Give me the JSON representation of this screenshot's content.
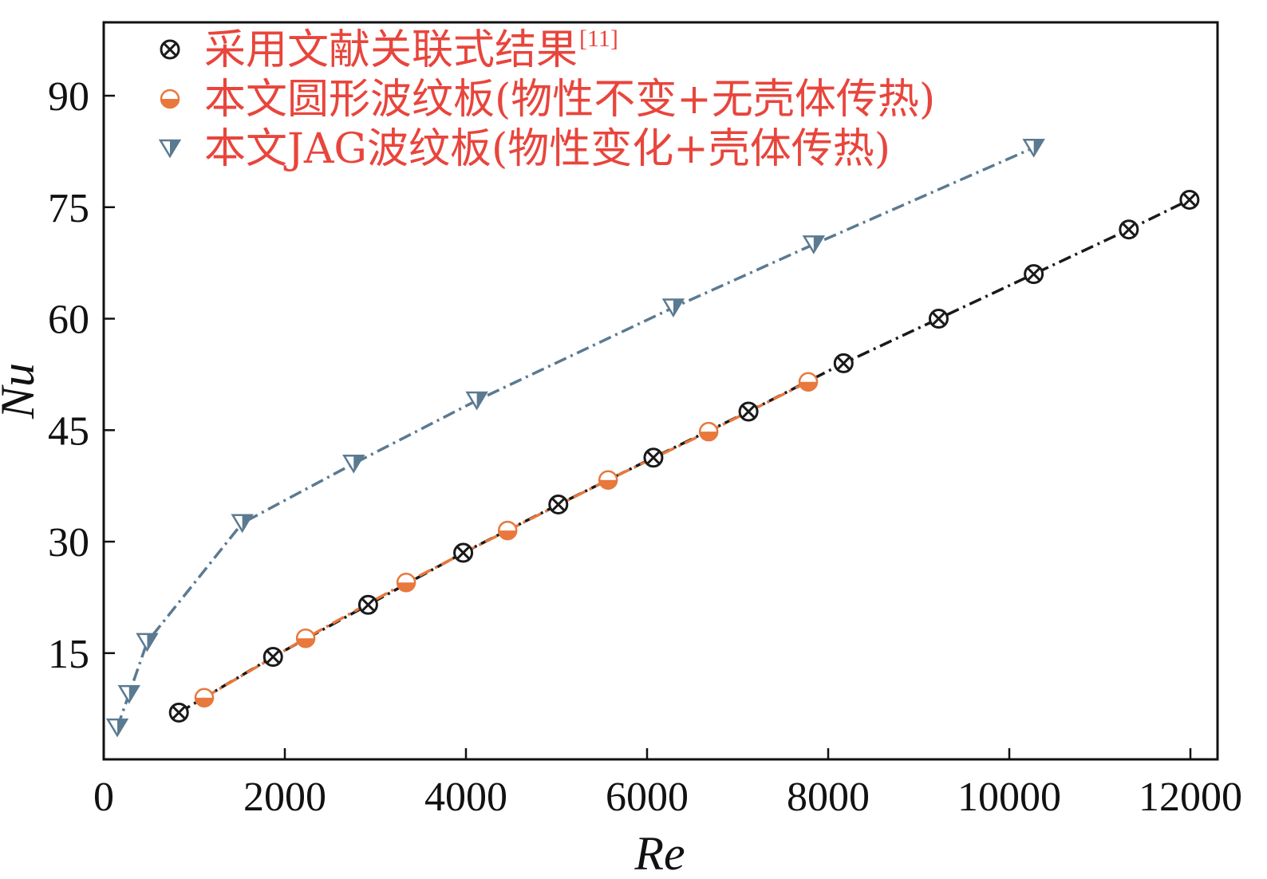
{
  "chart_data": {
    "type": "line",
    "xlabel": "Re",
    "ylabel": "Nu",
    "xlim": [
      0,
      12000
    ],
    "ylim": [
      0,
      100
    ],
    "x_ticks": [
      "0",
      "2000",
      "4000",
      "6000",
      "8000",
      "10000",
      "12000"
    ],
    "y_ticks": [
      "15",
      "30",
      "45",
      "60",
      "75",
      "90"
    ],
    "grid": false,
    "legend_position": "top-left",
    "series": [
      {
        "name": "采用文献关联式结果",
        "name_superscript": "[11]",
        "marker": "circle-x",
        "line_style": "dash-dot",
        "color": "#1a1a1a",
        "x": [
          830,
          1870,
          2920,
          3970,
          5020,
          6070,
          7120,
          8170,
          9220,
          10270,
          11320,
          11990
        ],
        "y": [
          7,
          14.5,
          21.5,
          28.5,
          35,
          41.3,
          47.5,
          54,
          60,
          66,
          72,
          76
        ]
      },
      {
        "name": "本文圆形波纹板(物性不变+无壳体传热)",
        "marker": "half-filled-circle",
        "line_style": "dash-dot",
        "color": "#e8783c",
        "x": [
          1110,
          2230,
          3340,
          4460,
          5570,
          6680,
          7780
        ],
        "y": [
          9,
          17,
          24.5,
          31.5,
          38.3,
          44.8,
          51.5
        ]
      },
      {
        "name": "本文JAG波纹板(物性变化+壳体传热)",
        "marker": "half-filled-triangle-down",
        "line_style": "dash-dot",
        "color": "#5b7a91",
        "x": [
          150,
          280,
          480,
          1530,
          2760,
          4120,
          6290,
          7840,
          10270
        ],
        "y": [
          5,
          9.5,
          16.5,
          32.5,
          40.5,
          49,
          61.5,
          70,
          83
        ]
      }
    ]
  }
}
